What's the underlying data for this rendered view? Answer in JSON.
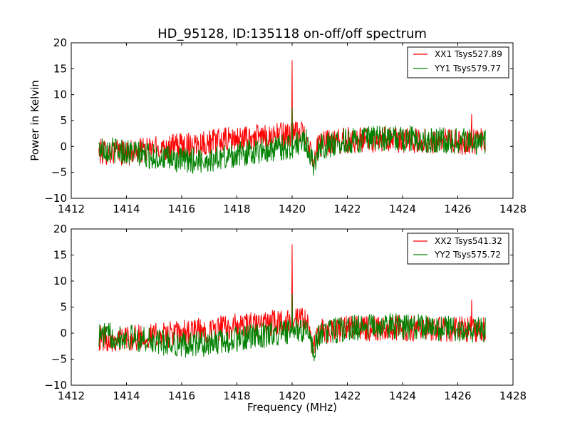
{
  "chart_data": [
    {
      "type": "line",
      "title": "HD_95128, ID:135118 on-off/off spectrum",
      "xlabel": "",
      "ylabel": "Power in Kelvin",
      "xlim": [
        1412,
        1428
      ],
      "ylim": [
        -10,
        20
      ],
      "x_ticks": [
        "1412",
        "1414",
        "1416",
        "1418",
        "1420",
        "1422",
        "1424",
        "1426",
        "1428"
      ],
      "y_ticks": [
        "20",
        "15",
        "10",
        "5",
        "0",
        "−5",
        "−10"
      ],
      "legend_position": "top-right",
      "grid": false,
      "x_range_of_data": [
        1413,
        1427
      ],
      "series": [
        {
          "name": "XX1 Tsys527.89",
          "color": "#ff0000",
          "baseline": [
            [
              1413,
              -1.0
            ],
            [
              1414,
              -1.2
            ],
            [
              1415,
              -0.5
            ],
            [
              1416,
              0.2
            ],
            [
              1417,
              0.8
            ],
            [
              1418,
              1.4
            ],
            [
              1419,
              1.9
            ],
            [
              1420,
              2.4
            ],
            [
              1420.5,
              2.6
            ],
            [
              1420.75,
              -2.5
            ],
            [
              1421,
              0.5
            ],
            [
              1422,
              1.2
            ],
            [
              1423,
              1.3
            ],
            [
              1424,
              1.2
            ],
            [
              1425,
              1.0
            ],
            [
              1426,
              0.9
            ],
            [
              1427,
              1.0
            ]
          ],
          "noise_amplitude": 2.5,
          "spikes": [
            [
              1420.0,
              16.6
            ],
            [
              1426.5,
              6.2
            ]
          ]
        },
        {
          "name": "YY1 Tsys579.77",
          "color": "#008000",
          "baseline": [
            [
              1413,
              -0.3
            ],
            [
              1414,
              -1.0
            ],
            [
              1415,
              -2.0
            ],
            [
              1416,
              -2.8
            ],
            [
              1417,
              -2.6
            ],
            [
              1418,
              -1.6
            ],
            [
              1419,
              -0.6
            ],
            [
              1420,
              0.0
            ],
            [
              1420.5,
              1.2
            ],
            [
              1420.75,
              -3.5
            ],
            [
              1421,
              0.0
            ],
            [
              1422,
              1.0
            ],
            [
              1423,
              1.5
            ],
            [
              1424,
              1.6
            ],
            [
              1425,
              1.2
            ],
            [
              1426,
              1.1
            ],
            [
              1427,
              0.8
            ]
          ],
          "noise_amplitude": 2.5,
          "spikes": [
            [
              1420.0,
              7.5
            ]
          ]
        }
      ]
    },
    {
      "type": "line",
      "title": "",
      "xlabel": "Frequency (MHz)",
      "ylabel": "",
      "xlim": [
        1412,
        1428
      ],
      "ylim": [
        -10,
        20
      ],
      "x_ticks": [
        "1412",
        "1414",
        "1416",
        "1418",
        "1420",
        "1422",
        "1424",
        "1426",
        "1428"
      ],
      "y_ticks": [
        "20",
        "15",
        "10",
        "5",
        "0",
        "−5",
        "−10"
      ],
      "legend_position": "top-right",
      "grid": false,
      "x_range_of_data": [
        1413,
        1427
      ],
      "series": [
        {
          "name": "XX2 Tsys541.32",
          "color": "#ff0000",
          "baseline": [
            [
              1413,
              -1.0
            ],
            [
              1414,
              -1.0
            ],
            [
              1415,
              -0.6
            ],
            [
              1416,
              0.0
            ],
            [
              1417,
              0.6
            ],
            [
              1418,
              1.3
            ],
            [
              1419,
              1.8
            ],
            [
              1420,
              2.2
            ],
            [
              1420.5,
              2.4
            ],
            [
              1420.75,
              -2.8
            ],
            [
              1421,
              0.4
            ],
            [
              1422,
              1.0
            ],
            [
              1423,
              1.0
            ],
            [
              1424,
              1.0
            ],
            [
              1425,
              0.8
            ],
            [
              1426,
              0.7
            ],
            [
              1427,
              0.8
            ]
          ],
          "noise_amplitude": 2.5,
          "spikes": [
            [
              1420.0,
              17.0
            ],
            [
              1426.5,
              6.4
            ]
          ]
        },
        {
          "name": "YY2 Tsys575.72",
          "color": "#008000",
          "baseline": [
            [
              1413,
              -0.3
            ],
            [
              1414,
              -0.8
            ],
            [
              1415,
              -1.6
            ],
            [
              1416,
              -2.2
            ],
            [
              1417,
              -2.0
            ],
            [
              1418,
              -1.2
            ],
            [
              1419,
              -0.4
            ],
            [
              1420,
              0.2
            ],
            [
              1420.5,
              1.0
            ],
            [
              1420.75,
              -3.6
            ],
            [
              1421,
              0.0
            ],
            [
              1422,
              0.9
            ],
            [
              1423,
              1.3
            ],
            [
              1424,
              1.3
            ],
            [
              1425,
              1.0
            ],
            [
              1426,
              0.9
            ],
            [
              1427,
              0.6
            ]
          ],
          "noise_amplitude": 2.5,
          "spikes": [
            [
              1420.0,
              7.5
            ]
          ]
        }
      ]
    }
  ]
}
